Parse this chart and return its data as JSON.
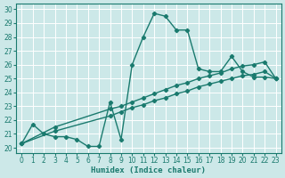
{
  "xlabel": "Humidex (Indice chaleur)",
  "bg_color": "#cce8e8",
  "grid_color": "#b8d8d8",
  "line_color": "#1a7a6e",
  "xlim": [
    -0.5,
    23.5
  ],
  "ylim": [
    19.6,
    30.4
  ],
  "xticks": [
    0,
    1,
    2,
    3,
    4,
    5,
    6,
    7,
    8,
    9,
    10,
    11,
    12,
    13,
    14,
    15,
    16,
    17,
    18,
    19,
    20,
    21,
    22,
    23
  ],
  "yticks": [
    20,
    21,
    22,
    23,
    24,
    25,
    26,
    27,
    28,
    29,
    30
  ],
  "line1_x": [
    0,
    1,
    2,
    3,
    4,
    5,
    6,
    7,
    8,
    9,
    10,
    11,
    12,
    13,
    14,
    15,
    16,
    17,
    18,
    19,
    20,
    21,
    22,
    23
  ],
  "line1_y": [
    20.3,
    21.7,
    21.0,
    20.8,
    20.8,
    20.6,
    20.1,
    20.1,
    23.3,
    20.6,
    26.0,
    28.0,
    29.7,
    29.5,
    28.5,
    28.5,
    25.7,
    25.5,
    25.5,
    26.6,
    25.5,
    25.1,
    25.1,
    25.0
  ],
  "line2_x": [
    0,
    3,
    8,
    9,
    10,
    11,
    12,
    13,
    14,
    15,
    16,
    17,
    18,
    19,
    20,
    21,
    22,
    23
  ],
  "line2_y": [
    20.3,
    21.2,
    22.3,
    22.6,
    22.9,
    23.1,
    23.4,
    23.6,
    23.9,
    24.1,
    24.4,
    24.6,
    24.8,
    25.0,
    25.2,
    25.3,
    25.5,
    25.0
  ],
  "line3_x": [
    0,
    3,
    8,
    9,
    10,
    11,
    12,
    13,
    14,
    15,
    16,
    17,
    18,
    19,
    20,
    21,
    22,
    23
  ],
  "line3_y": [
    20.3,
    21.5,
    22.8,
    23.0,
    23.3,
    23.6,
    23.9,
    24.2,
    24.5,
    24.7,
    25.0,
    25.2,
    25.4,
    25.7,
    25.9,
    26.0,
    26.2,
    25.0
  ],
  "marker": "D",
  "marker_size": 2.2,
  "linewidth": 1.0,
  "tick_fontsize": 5.5,
  "label_fontsize": 6.5,
  "figsize": [
    3.2,
    2.0
  ],
  "dpi": 100
}
